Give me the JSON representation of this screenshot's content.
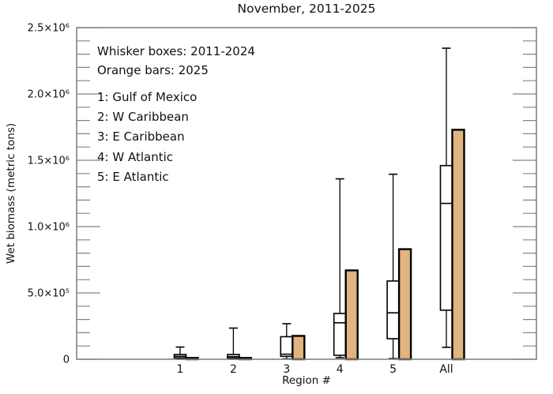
{
  "chart_data": {
    "type": "box",
    "title": "November, 2011-2025",
    "xlabel": "Region #",
    "ylabel": "Wet biomass (metric tons)",
    "ylim": [
      0,
      2500000
    ],
    "y_major_tick_values": [
      0,
      500000,
      1000000,
      1500000,
      2000000,
      2500000
    ],
    "y_tick_labels": [
      "0",
      "5.0×10⁵",
      "1.0×10⁶",
      "1.5×10⁶",
      "2.0×10⁶",
      "2.5×10⁶"
    ],
    "y_minor_tick_step": 100000,
    "grid": "off",
    "tick_style": "inward, mirrored left-right",
    "categories": [
      "1",
      "2",
      "3",
      "4",
      "5",
      "All"
    ],
    "annotations": {
      "note_whisker": "Whisker boxes: 2011-2024",
      "note_orange": "Orange bars: 2025"
    },
    "region_key": [
      "1: Gulf of Mexico",
      "2: W Caribbean",
      "3: E Caribbean",
      "4: W Atlantic",
      "5: E Atlantic"
    ],
    "series": [
      {
        "name": "Whisker boxes: 2011-2024",
        "type": "box",
        "data": [
          {
            "whisker_low": 0,
            "q1": 10000,
            "median": 22000,
            "q3": 36000,
            "whisker_high": 92000
          },
          {
            "whisker_low": 0,
            "q1": 9000,
            "median": 20000,
            "q3": 36000,
            "whisker_high": 235000
          },
          {
            "whisker_low": 3000,
            "q1": 22000,
            "median": 38000,
            "q3": 170000,
            "whisker_high": 268000
          },
          {
            "whisker_low": 12000,
            "q1": 30000,
            "median": 275000,
            "q3": 345000,
            "whisker_high": 1360000
          },
          {
            "whisker_low": 5000,
            "q1": 155000,
            "median": 350000,
            "q3": 590000,
            "whisker_high": 1395000
          },
          {
            "whisker_low": 90000,
            "q1": 370000,
            "median": 1175000,
            "q3": 1460000,
            "whisker_high": 2345000
          }
        ]
      },
      {
        "name": "Orange bars: 2025",
        "type": "bar",
        "values": [
          10000,
          10000,
          176000,
          670000,
          830000,
          1730000
        ]
      }
    ],
    "colors": {
      "bar_fill": "#e0b480",
      "box_fill": "#ffffff",
      "box_line": "#000000",
      "axis": "#848484",
      "text": "#111111"
    }
  }
}
